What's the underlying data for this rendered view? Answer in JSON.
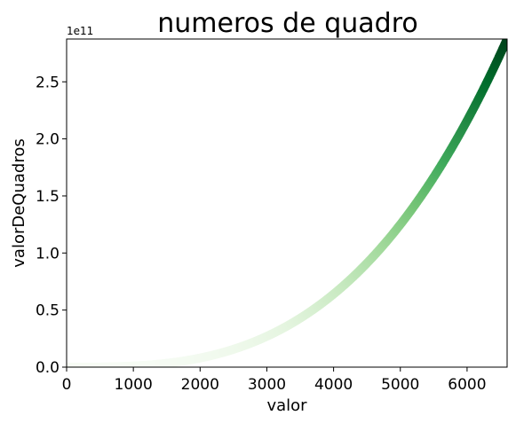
{
  "chart_data": {
    "type": "scatter",
    "title": "numeros de quadro",
    "xlabel": "valor",
    "ylabel": "valorDeQuadros",
    "y_offset_label": "1e11",
    "xlim": [
      0,
      6600
    ],
    "ylim": [
      0,
      2.875
    ],
    "y_scale_factor": 100000000000,
    "x_ticks": [
      0,
      1000,
      2000,
      3000,
      4000,
      5000,
      6000
    ],
    "x_tick_labels": [
      "0",
      "1000",
      "2000",
      "3000",
      "4000",
      "5000",
      "6000"
    ],
    "y_ticks": [
      0,
      0.5,
      1.0,
      1.5,
      2.0,
      2.5
    ],
    "y_tick_labels": [
      "0.0",
      "0.5",
      "1.0",
      "1.5",
      "2.0",
      "2.5"
    ],
    "grid": false,
    "legend": "none",
    "colormap": "Greens",
    "colormap_stops": [
      "#f7fcf5",
      "#e5f5e0",
      "#c7e9c0",
      "#a1d99b",
      "#74c476",
      "#41ab5d",
      "#238b45",
      "#006d2c",
      "#00441b"
    ],
    "series": [
      {
        "x_range": [
          1,
          6600
        ],
        "formula": "y = x^3",
        "x": [
          0,
          500,
          1000,
          1500,
          2000,
          2500,
          3000,
          3500,
          4000,
          4500,
          5000,
          5500,
          6000,
          6500,
          6600
        ],
        "y": [
          0,
          0.00125,
          0.01,
          0.03375,
          0.08,
          0.15625,
          0.27,
          0.42875,
          0.64,
          0.91125,
          1.25,
          1.66375,
          2.16,
          2.74625,
          2.87496
        ]
      }
    ]
  }
}
